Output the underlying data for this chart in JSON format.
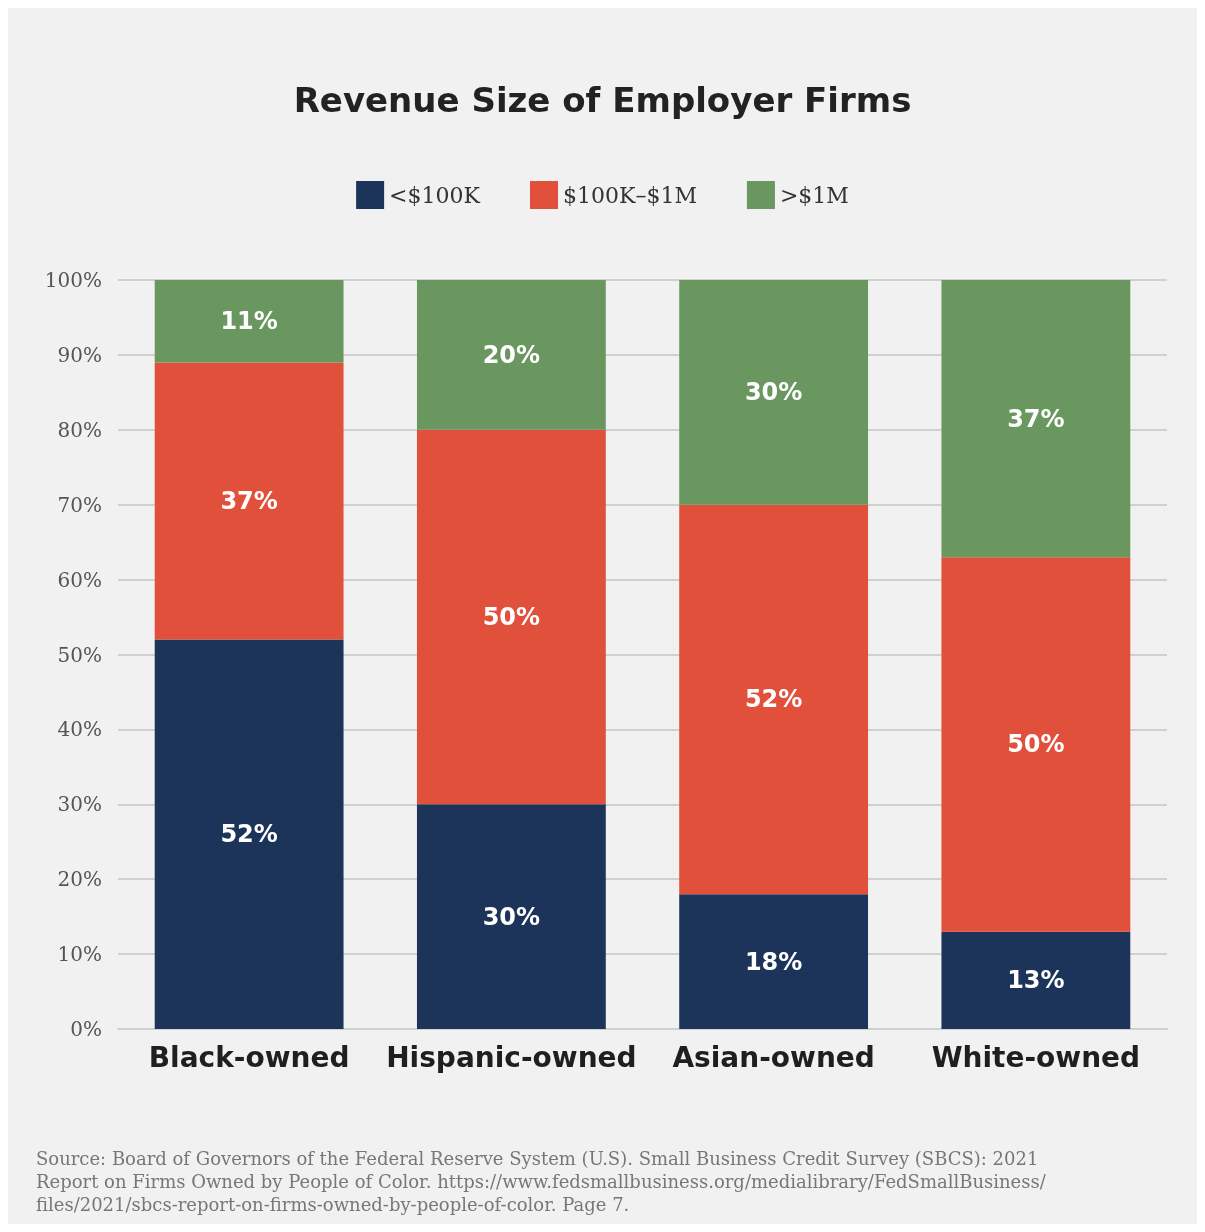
{
  "chart_data": {
    "type": "bar",
    "stacked": true,
    "title": "Revenue Size of Employer Firms",
    "categories": [
      "Black-owned",
      "Hispanic-owned",
      "Asian-owned",
      "White-owned"
    ],
    "series": [
      {
        "name": "<$100K",
        "color": "#1c3459",
        "values": [
          52,
          30,
          18,
          13
        ],
        "value_labels": [
          "52%",
          "30%",
          "18%",
          "13%"
        ]
      },
      {
        "name": "$100K–$1M",
        "color": "#e0503a",
        "values": [
          37,
          50,
          52,
          50
        ],
        "value_labels": [
          "37%",
          "50%",
          "52%",
          "50%"
        ]
      },
      {
        "name": ">$1M",
        "color": "#6a9760",
        "values": [
          11,
          20,
          30,
          37
        ],
        "value_labels": [
          "11%",
          "20%",
          "30%",
          "37%"
        ]
      }
    ],
    "ylim": [
      0,
      100
    ],
    "yticks": [
      {
        "value": 0,
        "label": "0%"
      },
      {
        "value": 10,
        "label": "10%"
      },
      {
        "value": 20,
        "label": "20%"
      },
      {
        "value": 30,
        "label": "30%"
      },
      {
        "value": 40,
        "label": "40%"
      },
      {
        "value": 50,
        "label": "50%"
      },
      {
        "value": 60,
        "label": "60%"
      },
      {
        "value": 70,
        "label": "70%"
      },
      {
        "value": 80,
        "label": "80%"
      },
      {
        "value": 90,
        "label": "90%"
      },
      {
        "value": 100,
        "label": "100%"
      }
    ],
    "grid": "y",
    "legend": "top",
    "annotations": [
      "Source: Board of Governors of the Federal Reserve System (U.S). Small Business Credit Survey (SBCS): 2021 Report on Firms Owned by People of Color. https://www.fedsmallbusiness.org/medialibrary/FedSmallBusiness/files/2021/sbcs-report-on-firms-owned-by-people-of-color. Page 7."
    ]
  }
}
